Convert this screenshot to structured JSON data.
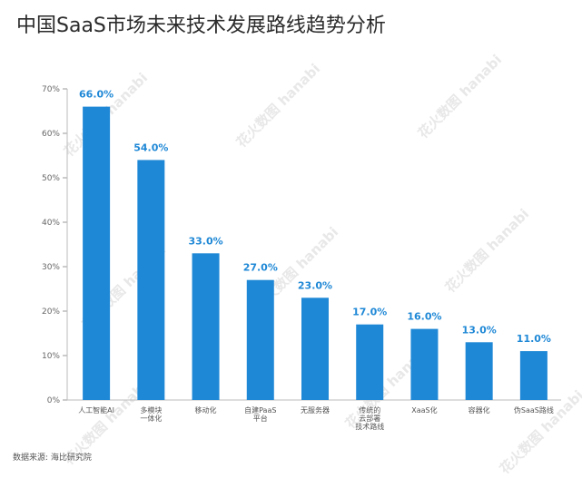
{
  "chart_data": {
    "type": "bar",
    "title": "中国SaaS市场未来技术发展路线趋势分析",
    "categories": [
      [
        "人工智能AI"
      ],
      [
        "多模块",
        "一体化"
      ],
      [
        "移动化"
      ],
      [
        "自建PaaS",
        "平台"
      ],
      [
        "无服务器"
      ],
      [
        "传统的",
        "云部署",
        "技术路线"
      ],
      [
        "XaaS化"
      ],
      [
        "容器化"
      ],
      [
        "伪SaaS路线"
      ]
    ],
    "values": [
      66.0,
      54.0,
      33.0,
      27.0,
      23.0,
      17.0,
      16.0,
      13.0,
      11.0
    ],
    "data_labels": [
      "66.0%",
      "54.0%",
      "33.0%",
      "27.0%",
      "23.0%",
      "17.0%",
      "16.0%",
      "13.0%",
      "11.0%"
    ],
    "y_ticks": [
      0,
      10,
      20,
      30,
      40,
      50,
      60,
      70
    ],
    "y_tick_labels": [
      "0%",
      "10%",
      "20%",
      "30%",
      "40%",
      "50%",
      "60%",
      "70%"
    ],
    "ylim": [
      0,
      70
    ],
    "grid": false,
    "xlabel": "",
    "ylabel": "",
    "bar_color": "#1f88d6",
    "label_color": "#1f88d6"
  },
  "source": "数据来源: 海比研究院",
  "watermark_text": "花火数图 hanabi"
}
